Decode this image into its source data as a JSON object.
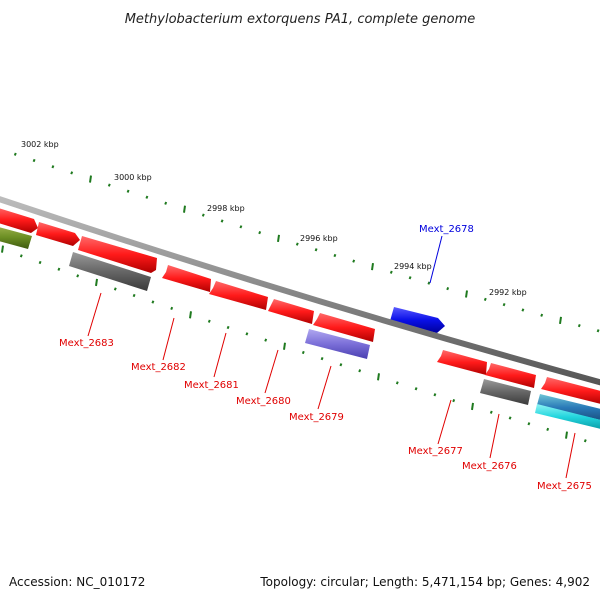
{
  "title": "Methylobacterium extorquens PA1, complete genome",
  "footer": {
    "accession": "Accession: NC_010172",
    "summary": "Topology: circular; Length: 5,471,154 bp; Genes: 4,902"
  },
  "ticks": [
    {
      "label": "3002 kbp"
    },
    {
      "label": "3000 kbp"
    },
    {
      "label": "2998 kbp"
    },
    {
      "label": "2996 kbp"
    },
    {
      "label": "2994 kbp"
    },
    {
      "label": "2992 kbp"
    }
  ],
  "genes": [
    {
      "label": "Mext_2683",
      "color": "#e00000"
    },
    {
      "label": "Mext_2682",
      "color": "#e00000"
    },
    {
      "label": "Mext_2681",
      "color": "#e00000"
    },
    {
      "label": "Mext_2680",
      "color": "#e00000"
    },
    {
      "label": "Mext_2679",
      "color": "#e00000"
    },
    {
      "label": "Mext_2678",
      "color": "#0000dd"
    },
    {
      "label": "Mext_2677",
      "color": "#e00000"
    },
    {
      "label": "Mext_2676",
      "color": "#e00000"
    },
    {
      "label": "Mext_2675",
      "color": "#e00000"
    }
  ],
  "colors": {
    "forward_cds": "#ff1a1a",
    "reverse_cds": "#ff1a1a",
    "blue_cds": "#0a10e8",
    "grey_feature": "#666666",
    "purple_feature": "#7b6fd8",
    "olive_feature": "#6b8e23",
    "teal_feature": "#2aa6b8",
    "cyan_feature": "#33dde0",
    "tick_green": "#1f7a1f",
    "backbone": "#888888"
  }
}
